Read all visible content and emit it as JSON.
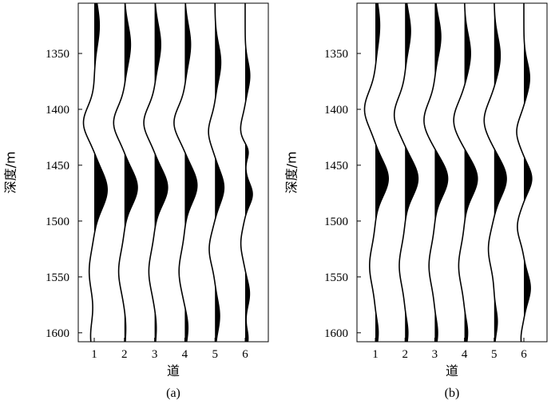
{
  "chart_data": [
    {
      "type": "seismic-wiggle",
      "caption": "(a)",
      "xlabel": "道",
      "ylabel": "深度/m",
      "xticks": [
        "1",
        "2",
        "3",
        "4",
        "5",
        "6"
      ],
      "yticks": [
        1350,
        1400,
        1450,
        1500,
        1550,
        1600
      ],
      "ylim": [
        1305,
        1608
      ],
      "y_reversed": true,
      "fill": "positive-black",
      "traces": [
        {
          "trace": 1,
          "peaks": [
            {
              "depth": 1325,
              "amp": 0.35,
              "width": 26
            },
            {
              "depth": 1412,
              "amp": -0.75,
              "width": 20
            },
            {
              "depth": 1472,
              "amp": 0.9,
              "width": 24
            },
            {
              "depth": 1545,
              "amp": -0.35,
              "width": 24
            },
            {
              "depth": 1603,
              "amp": -0.25,
              "width": 20
            }
          ]
        },
        {
          "trace": 2,
          "peaks": [
            {
              "depth": 1342,
              "amp": 0.42,
              "width": 25
            },
            {
              "depth": 1412,
              "amp": -0.75,
              "width": 20
            },
            {
              "depth": 1470,
              "amp": 0.9,
              "width": 22
            },
            {
              "depth": 1545,
              "amp": -0.4,
              "width": 24
            },
            {
              "depth": 1595,
              "amp": 0.1,
              "width": 18
            }
          ]
        },
        {
          "trace": 3,
          "peaks": [
            {
              "depth": 1342,
              "amp": 0.42,
              "width": 25
            },
            {
              "depth": 1412,
              "amp": -0.75,
              "width": 20
            },
            {
              "depth": 1470,
              "amp": 0.9,
              "width": 22
            },
            {
              "depth": 1545,
              "amp": -0.4,
              "width": 24
            },
            {
              "depth": 1595,
              "amp": 0.12,
              "width": 18
            }
          ]
        },
        {
          "trace": 4,
          "peaks": [
            {
              "depth": 1342,
              "amp": 0.4,
              "width": 25
            },
            {
              "depth": 1412,
              "amp": -0.75,
              "width": 20
            },
            {
              "depth": 1468,
              "amp": 0.85,
              "width": 22
            },
            {
              "depth": 1545,
              "amp": -0.4,
              "width": 24
            },
            {
              "depth": 1595,
              "amp": 0.22,
              "width": 18
            }
          ]
        },
        {
          "trace": 5,
          "peaks": [
            {
              "depth": 1358,
              "amp": 0.4,
              "width": 23
            },
            {
              "depth": 1420,
              "amp": -0.45,
              "width": 18
            },
            {
              "depth": 1470,
              "amp": 0.62,
              "width": 20
            },
            {
              "depth": 1525,
              "amp": -0.4,
              "width": 20
            },
            {
              "depth": 1585,
              "amp": 0.32,
              "width": 20
            }
          ]
        },
        {
          "trace": 6,
          "peaks": [
            {
              "depth": 1370,
              "amp": 0.32,
              "width": 18
            },
            {
              "depth": 1418,
              "amp": -0.32,
              "width": 16
            },
            {
              "depth": 1437,
              "amp": 0.28,
              "width": 10
            },
            {
              "depth": 1476,
              "amp": 0.5,
              "width": 14
            },
            {
              "depth": 1520,
              "amp": -0.3,
              "width": 18
            },
            {
              "depth": 1565,
              "amp": 0.3,
              "width": 16
            },
            {
              "depth": 1605,
              "amp": 0.2,
              "width": 12
            }
          ]
        }
      ]
    },
    {
      "type": "seismic-wiggle",
      "caption": "(b)",
      "xlabel": "道",
      "ylabel": "深度/m",
      "xticks": [
        "1",
        "2",
        "3",
        "4",
        "5",
        "6"
      ],
      "yticks": [
        1350,
        1400,
        1450,
        1500,
        1550,
        1600
      ],
      "ylim": [
        1305,
        1608
      ],
      "y_reversed": true,
      "fill": "positive-black",
      "traces": [
        {
          "trace": 1,
          "peaks": [
            {
              "depth": 1325,
              "amp": 0.3,
              "width": 26
            },
            {
              "depth": 1400,
              "amp": -0.75,
              "width": 22
            },
            {
              "depth": 1462,
              "amp": 0.9,
              "width": 22
            },
            {
              "depth": 1540,
              "amp": -0.4,
              "width": 24
            },
            {
              "depth": 1600,
              "amp": 0.2,
              "width": 16
            }
          ]
        },
        {
          "trace": 2,
          "peaks": [
            {
              "depth": 1330,
              "amp": 0.38,
              "width": 24
            },
            {
              "depth": 1405,
              "amp": -0.75,
              "width": 22
            },
            {
              "depth": 1462,
              "amp": 0.9,
              "width": 22
            },
            {
              "depth": 1540,
              "amp": -0.4,
              "width": 24
            },
            {
              "depth": 1600,
              "amp": 0.2,
              "width": 16
            }
          ]
        },
        {
          "trace": 3,
          "peaks": [
            {
              "depth": 1335,
              "amp": 0.42,
              "width": 24
            },
            {
              "depth": 1410,
              "amp": -0.75,
              "width": 22
            },
            {
              "depth": 1462,
              "amp": 0.9,
              "width": 22
            },
            {
              "depth": 1540,
              "amp": -0.4,
              "width": 24
            },
            {
              "depth": 1600,
              "amp": 0.2,
              "width": 16
            }
          ]
        },
        {
          "trace": 4,
          "peaks": [
            {
              "depth": 1350,
              "amp": 0.42,
              "width": 24
            },
            {
              "depth": 1410,
              "amp": -0.75,
              "width": 22
            },
            {
              "depth": 1462,
              "amp": 0.9,
              "width": 22
            },
            {
              "depth": 1540,
              "amp": -0.4,
              "width": 24
            },
            {
              "depth": 1600,
              "amp": 0.22,
              "width": 16
            }
          ]
        },
        {
          "trace": 5,
          "peaks": [
            {
              "depth": 1352,
              "amp": 0.42,
              "width": 24
            },
            {
              "depth": 1410,
              "amp": -0.7,
              "width": 22
            },
            {
              "depth": 1462,
              "amp": 0.85,
              "width": 22
            },
            {
              "depth": 1525,
              "amp": -0.4,
              "width": 22
            },
            {
              "depth": 1590,
              "amp": 0.22,
              "width": 16
            }
          ]
        },
        {
          "trace": 6,
          "peaks": [
            {
              "depth": 1372,
              "amp": 0.4,
              "width": 20
            },
            {
              "depth": 1420,
              "amp": -0.5,
              "width": 18
            },
            {
              "depth": 1462,
              "amp": 0.55,
              "width": 16
            },
            {
              "depth": 1505,
              "amp": -0.45,
              "width": 18
            },
            {
              "depth": 1560,
              "amp": 0.45,
              "width": 18
            },
            {
              "depth": 1605,
              "amp": -0.2,
              "width": 14
            }
          ]
        }
      ]
    }
  ]
}
